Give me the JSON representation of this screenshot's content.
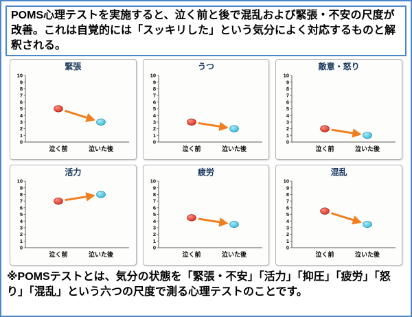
{
  "intro": {
    "text": " POMS心理テストを実施すると、泣く前と後で混乱および緊張・不安の尺度が改善。これは自覚的には「スッキリした」という気分によく対応するものと解釈される。"
  },
  "footnote": {
    "text": "※POMSテストとは、気分の状態を「緊張・不安」「活力」「抑圧」「疲労」「怒り」「混乱」という六つの尺度で測る心理テストのことです。"
  },
  "chart_data": [
    {
      "type": "scatter",
      "title": "緊張",
      "categories": [
        "泣く前",
        "泣いた後"
      ],
      "values": [
        5,
        3
      ],
      "ylim": [
        0,
        10
      ],
      "ytick_step": 1,
      "grid": false,
      "trend": "down"
    },
    {
      "type": "scatter",
      "title": "うつ",
      "categories": [
        "泣く前",
        "泣いた後"
      ],
      "values": [
        3,
        2
      ],
      "ylim": [
        0,
        10
      ],
      "ytick_step": 1,
      "grid": false,
      "trend": "down"
    },
    {
      "type": "scatter",
      "title": "敵意・怒り",
      "categories": [
        "泣く前",
        "泣いた後"
      ],
      "values": [
        2,
        1
      ],
      "ylim": [
        0,
        10
      ],
      "ytick_step": 1,
      "grid": false,
      "trend": "down"
    },
    {
      "type": "scatter",
      "title": "活力",
      "categories": [
        "泣く前",
        "泣いた後"
      ],
      "values": [
        7,
        8
      ],
      "ylim": [
        0,
        10
      ],
      "ytick_step": 1,
      "grid": false,
      "trend": "up"
    },
    {
      "type": "scatter",
      "title": "疲労",
      "categories": [
        "泣く前",
        "泣いた後"
      ],
      "values": [
        4.5,
        3.5
      ],
      "ylim": [
        0,
        10
      ],
      "ytick_step": 1,
      "grid": false,
      "trend": "down"
    },
    {
      "type": "scatter",
      "title": "混乱",
      "categories": [
        "泣く前",
        "泣いた後"
      ],
      "values": [
        5.5,
        3.5
      ],
      "ylim": [
        0,
        10
      ],
      "ytick_step": 1,
      "grid": false,
      "trend": "down"
    }
  ],
  "colors": {
    "before_point": "#d2261b",
    "before_point_light": "#ff9080",
    "before_point_edge": "#8a1a10",
    "after_point": "#2eb5d8",
    "after_point_light": "#a8ecfa",
    "after_point_edge": "#147a96",
    "arrow": "#f07f1f",
    "frame": "#4a86c8",
    "title_text": "#17375e",
    "axis": "#5a5a5a"
  }
}
